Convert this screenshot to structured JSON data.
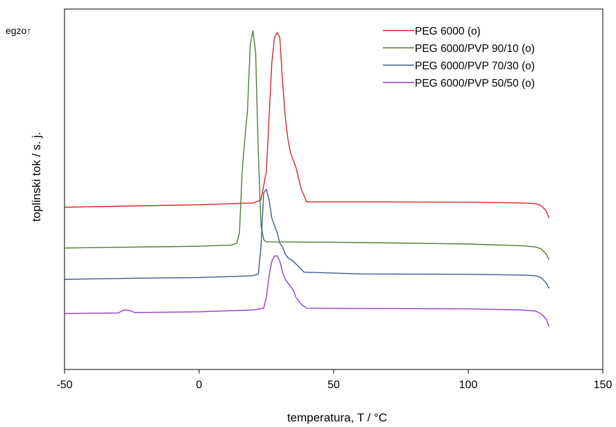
{
  "chart_data": {
    "type": "line",
    "xlabel": "temperatura, T / °C",
    "ylabel": "toplinski tok / s. j.",
    "corner_label": "egzo↑",
    "xlim": [
      -50,
      150
    ],
    "xticks": [
      -50,
      0,
      50,
      100,
      150
    ],
    "ylim": [
      0,
      1
    ],
    "y_units": "arbitrary (relative heat flow)",
    "grid": false,
    "legend_position": "top-right",
    "series": [
      {
        "name": "PEG 6000 (o)",
        "color": "#d62728",
        "points": [
          [
            -50,
            0.45
          ],
          [
            0,
            0.457
          ],
          [
            20,
            0.462
          ],
          [
            23,
            0.47
          ],
          [
            25,
            0.55
          ],
          [
            26,
            0.7
          ],
          [
            27,
            0.85
          ],
          [
            28,
            0.92
          ],
          [
            29,
            0.935
          ],
          [
            30,
            0.92
          ],
          [
            31,
            0.8
          ],
          [
            32,
            0.7
          ],
          [
            33,
            0.64
          ],
          [
            34,
            0.6
          ],
          [
            35,
            0.58
          ],
          [
            36,
            0.56
          ],
          [
            38,
            0.5
          ],
          [
            40,
            0.465
          ],
          [
            60,
            0.465
          ],
          [
            100,
            0.464
          ],
          [
            120,
            0.462
          ],
          [
            125,
            0.46
          ],
          [
            127,
            0.455
          ],
          [
            129,
            0.44
          ],
          [
            130,
            0.42
          ]
        ]
      },
      {
        "name": "PEG 6000/PVP 90/10 (o)",
        "color": "#4e7a38",
        "points": [
          [
            -50,
            0.337
          ],
          [
            0,
            0.342
          ],
          [
            12,
            0.345
          ],
          [
            14,
            0.35
          ],
          [
            15,
            0.38
          ],
          [
            16,
            0.55
          ],
          [
            17,
            0.64
          ],
          [
            18,
            0.72
          ],
          [
            19,
            0.9
          ],
          [
            20,
            0.94
          ],
          [
            21,
            0.88
          ],
          [
            22,
            0.6
          ],
          [
            23,
            0.4
          ],
          [
            24,
            0.36
          ],
          [
            25,
            0.354
          ],
          [
            50,
            0.353
          ],
          [
            100,
            0.348
          ],
          [
            120,
            0.343
          ],
          [
            125,
            0.34
          ],
          [
            127,
            0.335
          ],
          [
            129,
            0.32
          ],
          [
            130,
            0.305
          ]
        ]
      },
      {
        "name": "PEG 6000/PVP 70/30 (o)",
        "color": "#3c5a8a",
        "points": [
          [
            -50,
            0.25
          ],
          [
            -25,
            0.253
          ],
          [
            0,
            0.255
          ],
          [
            20,
            0.26
          ],
          [
            22,
            0.265
          ],
          [
            23,
            0.34
          ],
          [
            24,
            0.49
          ],
          [
            25,
            0.5
          ],
          [
            26,
            0.47
          ],
          [
            27,
            0.42
          ],
          [
            28,
            0.4
          ],
          [
            29,
            0.38
          ],
          [
            30,
            0.35
          ],
          [
            31,
            0.34
          ],
          [
            32,
            0.32
          ],
          [
            33,
            0.31
          ],
          [
            35,
            0.3
          ],
          [
            37,
            0.285
          ],
          [
            39,
            0.27
          ],
          [
            60,
            0.265
          ],
          [
            100,
            0.264
          ],
          [
            120,
            0.262
          ],
          [
            125,
            0.26
          ],
          [
            127,
            0.255
          ],
          [
            129,
            0.24
          ],
          [
            130,
            0.225
          ]
        ]
      },
      {
        "name": "PEG 6000/PVP 50/50 (o)",
        "color": "#8f3bc8",
        "points": [
          [
            -50,
            0.155
          ],
          [
            -30,
            0.157
          ],
          [
            -28,
            0.165
          ],
          [
            -26,
            0.164
          ],
          [
            -24,
            0.158
          ],
          [
            0,
            0.16
          ],
          [
            20,
            0.165
          ],
          [
            24,
            0.17
          ],
          [
            25,
            0.2
          ],
          [
            26,
            0.26
          ],
          [
            27,
            0.3
          ],
          [
            28,
            0.315
          ],
          [
            29,
            0.315
          ],
          [
            30,
            0.3
          ],
          [
            31,
            0.27
          ],
          [
            32,
            0.25
          ],
          [
            33,
            0.24
          ],
          [
            34,
            0.23
          ],
          [
            35,
            0.22
          ],
          [
            36,
            0.2
          ],
          [
            38,
            0.18
          ],
          [
            40,
            0.17
          ],
          [
            60,
            0.169
          ],
          [
            100,
            0.168
          ],
          [
            120,
            0.165
          ],
          [
            125,
            0.162
          ],
          [
            127,
            0.155
          ],
          [
            129,
            0.14
          ],
          [
            130,
            0.12
          ]
        ]
      }
    ]
  }
}
